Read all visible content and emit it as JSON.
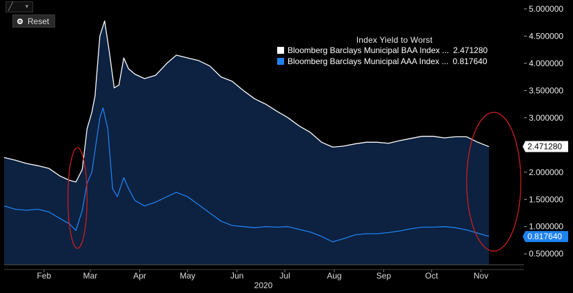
{
  "toolbar": {
    "chart_icon": "line-chart-icon",
    "dropdown_icon": "caret-down-icon"
  },
  "reset_button": {
    "label": "Reset",
    "icon": "reset-icon"
  },
  "legend": {
    "title": "Index Yield to Worst",
    "entries": [
      {
        "name": "Bloomberg Barclays Municipal BAA Index ...",
        "value": "2.471280",
        "color": "#ffffff"
      },
      {
        "name": "Bloomberg Barclays Municipal AAA Index ...",
        "value": "0.817640",
        "color": "#1e82f0"
      }
    ]
  },
  "chart_data": {
    "type": "area",
    "title": "Index Yield to Worst",
    "x_unit": "date",
    "year_label": "2020",
    "xlim": [
      "2020-01-21",
      "2020-12-12"
    ],
    "ylim": [
      0.3,
      5.1
    ],
    "grid": false,
    "legend_position": "top-right",
    "y_ticks": [
      {
        "value": 5.0,
        "label": "5.000000"
      },
      {
        "value": 4.5,
        "label": "4.500000"
      },
      {
        "value": 4.0,
        "label": "4.000000"
      },
      {
        "value": 3.5,
        "label": "3.500000"
      },
      {
        "value": 3.0,
        "label": "3.000000"
      },
      {
        "value": 2.5,
        "label": "2.500000"
      },
      {
        "value": 2.0,
        "label": "2.000000"
      },
      {
        "value": 1.5,
        "label": "1.500000"
      },
      {
        "value": 1.0,
        "label": "1.000000"
      },
      {
        "value": 0.5,
        "label": "0.500000"
      }
    ],
    "x_ticks": [
      {
        "date": "2020-02-15",
        "label": "Feb"
      },
      {
        "date": "2020-03-15",
        "label": "Mar"
      },
      {
        "date": "2020-04-15",
        "label": "Apr"
      },
      {
        "date": "2020-05-15",
        "label": "May"
      },
      {
        "date": "2020-06-15",
        "label": "Jun"
      },
      {
        "date": "2020-07-15",
        "label": "Jul"
      },
      {
        "date": "2020-08-15",
        "label": "Aug"
      },
      {
        "date": "2020-09-15",
        "label": "Sep"
      },
      {
        "date": "2020-10-15",
        "label": "Oct"
      },
      {
        "date": "2020-11-15",
        "label": "Nov"
      }
    ],
    "last_value_labels": [
      "2.471280",
      "0.817640"
    ],
    "series": [
      {
        "name": "Bloomberg Barclays Municipal BAA Index",
        "color": "#ffffff",
        "last_value": 2.47128,
        "points": [
          [
            "2020-01-21",
            2.27
          ],
          [
            "2020-01-28",
            2.22
          ],
          [
            "2020-02-04",
            2.16
          ],
          [
            "2020-02-11",
            2.12
          ],
          [
            "2020-02-18",
            2.07
          ],
          [
            "2020-02-25",
            1.93
          ],
          [
            "2020-03-02",
            1.85
          ],
          [
            "2020-03-06",
            1.82
          ],
          [
            "2020-03-10",
            2.05
          ],
          [
            "2020-03-13",
            2.8
          ],
          [
            "2020-03-16",
            3.1
          ],
          [
            "2020-03-18",
            3.4
          ],
          [
            "2020-03-21",
            4.5
          ],
          [
            "2020-03-24",
            4.78
          ],
          [
            "2020-03-27",
            4.2
          ],
          [
            "2020-03-30",
            3.55
          ],
          [
            "2020-04-02",
            3.6
          ],
          [
            "2020-04-05",
            4.1
          ],
          [
            "2020-04-08",
            3.9
          ],
          [
            "2020-04-12",
            3.8
          ],
          [
            "2020-04-18",
            3.72
          ],
          [
            "2020-04-25",
            3.78
          ],
          [
            "2020-05-02",
            4.0
          ],
          [
            "2020-05-08",
            4.15
          ],
          [
            "2020-05-15",
            4.1
          ],
          [
            "2020-05-22",
            4.05
          ],
          [
            "2020-05-29",
            3.95
          ],
          [
            "2020-06-05",
            3.75
          ],
          [
            "2020-06-12",
            3.67
          ],
          [
            "2020-06-19",
            3.5
          ],
          [
            "2020-06-26",
            3.35
          ],
          [
            "2020-07-03",
            3.25
          ],
          [
            "2020-07-10",
            3.12
          ],
          [
            "2020-07-17",
            3.0
          ],
          [
            "2020-07-24",
            2.85
          ],
          [
            "2020-07-31",
            2.73
          ],
          [
            "2020-08-07",
            2.55
          ],
          [
            "2020-08-14",
            2.46
          ],
          [
            "2020-08-21",
            2.48
          ],
          [
            "2020-08-28",
            2.52
          ],
          [
            "2020-09-04",
            2.55
          ],
          [
            "2020-09-11",
            2.55
          ],
          [
            "2020-09-18",
            2.53
          ],
          [
            "2020-09-25",
            2.58
          ],
          [
            "2020-10-02",
            2.62
          ],
          [
            "2020-10-09",
            2.66
          ],
          [
            "2020-10-16",
            2.66
          ],
          [
            "2020-10-23",
            2.63
          ],
          [
            "2020-10-30",
            2.65
          ],
          [
            "2020-11-06",
            2.65
          ],
          [
            "2020-11-13",
            2.55
          ],
          [
            "2020-11-20",
            2.47
          ]
        ]
      },
      {
        "name": "Bloomberg Barclays Municipal AAA Index",
        "color": "#1e82f0",
        "last_value": 0.81764,
        "points": [
          [
            "2020-01-21",
            1.38
          ],
          [
            "2020-01-28",
            1.32
          ],
          [
            "2020-02-04",
            1.3
          ],
          [
            "2020-02-11",
            1.32
          ],
          [
            "2020-02-18",
            1.27
          ],
          [
            "2020-02-25",
            1.15
          ],
          [
            "2020-03-02",
            1.05
          ],
          [
            "2020-03-06",
            0.93
          ],
          [
            "2020-03-10",
            1.3
          ],
          [
            "2020-03-13",
            1.8
          ],
          [
            "2020-03-16",
            2.0
          ],
          [
            "2020-03-18",
            2.4
          ],
          [
            "2020-03-21",
            3.0
          ],
          [
            "2020-03-23",
            3.18
          ],
          [
            "2020-03-26",
            2.8
          ],
          [
            "2020-03-29",
            1.7
          ],
          [
            "2020-04-01",
            1.55
          ],
          [
            "2020-04-05",
            1.9
          ],
          [
            "2020-04-08",
            1.7
          ],
          [
            "2020-04-12",
            1.48
          ],
          [
            "2020-04-18",
            1.38
          ],
          [
            "2020-04-25",
            1.45
          ],
          [
            "2020-05-02",
            1.55
          ],
          [
            "2020-05-08",
            1.63
          ],
          [
            "2020-05-15",
            1.55
          ],
          [
            "2020-05-22",
            1.4
          ],
          [
            "2020-05-29",
            1.25
          ],
          [
            "2020-06-05",
            1.1
          ],
          [
            "2020-06-12",
            1.02
          ],
          [
            "2020-06-19",
            1.0
          ],
          [
            "2020-06-26",
            0.98
          ],
          [
            "2020-07-03",
            1.0
          ],
          [
            "2020-07-10",
            0.99
          ],
          [
            "2020-07-17",
            1.0
          ],
          [
            "2020-07-24",
            0.95
          ],
          [
            "2020-07-31",
            0.9
          ],
          [
            "2020-08-07",
            0.82
          ],
          [
            "2020-08-14",
            0.72
          ],
          [
            "2020-08-21",
            0.78
          ],
          [
            "2020-08-28",
            0.85
          ],
          [
            "2020-09-04",
            0.87
          ],
          [
            "2020-09-11",
            0.87
          ],
          [
            "2020-09-18",
            0.89
          ],
          [
            "2020-09-25",
            0.92
          ],
          [
            "2020-10-02",
            0.96
          ],
          [
            "2020-10-09",
            0.99
          ],
          [
            "2020-10-16",
            0.99
          ],
          [
            "2020-10-23",
            1.0
          ],
          [
            "2020-10-30",
            0.98
          ],
          [
            "2020-11-06",
            0.94
          ],
          [
            "2020-11-13",
            0.88
          ],
          [
            "2020-11-20",
            0.82
          ]
        ]
      }
    ],
    "annotations": [
      {
        "type": "ellipse",
        "color": "#cc1f1f",
        "from": "2020-03-01",
        "to": "2020-03-13",
        "y_range": [
          0.6,
          2.45
        ]
      },
      {
        "type": "ellipse",
        "color": "#cc1f1f",
        "from": "2020-11-06",
        "to": "2020-12-10",
        "y_range": [
          0.55,
          3.1
        ]
      }
    ]
  }
}
